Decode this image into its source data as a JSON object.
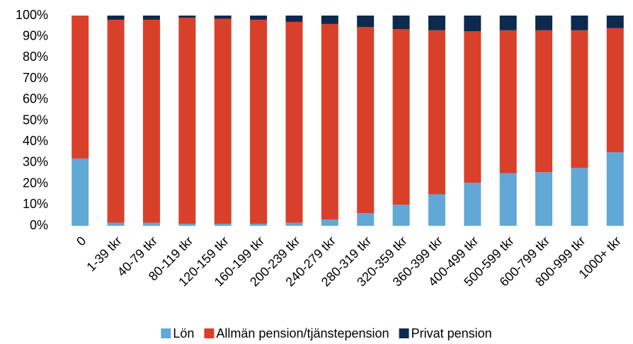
{
  "chart_data": {
    "type": "bar",
    "stacked": true,
    "categories": [
      "0",
      "1-39 tkr",
      "40-79 tkr",
      "80-119 tkr",
      "120-159 tkr",
      "160-199 tkr",
      "200-239 tkr",
      "240-279 tkr",
      "280-319 tkr",
      "320-359 tkr",
      "360-399 tkr",
      "400-499 tkr",
      "500-599 tkr",
      "600-799 tkr",
      "800-999 tkr",
      "1000+ tkr"
    ],
    "series": [
      {
        "name": "Lön",
        "color": "#62a8d6",
        "values": [
          32,
          1.5,
          1.5,
          1,
          1,
          1,
          1.5,
          3,
          6,
          10,
          15,
          20.5,
          25,
          25.5,
          27.5,
          35
        ]
      },
      {
        "name": "Allmän pension/tjänstepension",
        "color": "#d9402a",
        "values": [
          68,
          96.5,
          96.5,
          98,
          97.5,
          97,
          95.5,
          93,
          88.5,
          83.5,
          78,
          72,
          68,
          67.5,
          65.5,
          59
        ]
      },
      {
        "name": "Privat pension",
        "color": "#0b2a4e",
        "values": [
          0,
          2,
          2,
          1,
          1.5,
          2,
          3,
          4,
          5.5,
          6.5,
          7,
          7.5,
          7,
          7,
          7,
          6
        ]
      }
    ],
    "ylim": [
      0,
      100
    ],
    "yticks": [
      {
        "value": 0,
        "label": "0%"
      },
      {
        "value": 10,
        "label": "10%"
      },
      {
        "value": 20,
        "label": "20%"
      },
      {
        "value": 30,
        "label": "30%"
      },
      {
        "value": 40,
        "label": "40%"
      },
      {
        "value": 50,
        "label": "50%"
      },
      {
        "value": 60,
        "label": "60%"
      },
      {
        "value": 70,
        "label": "70%"
      },
      {
        "value": 80,
        "label": "80%"
      },
      {
        "value": 90,
        "label": "90%"
      },
      {
        "value": 100,
        "label": "100%"
      }
    ],
    "grid": false,
    "legend": "bottom"
  }
}
